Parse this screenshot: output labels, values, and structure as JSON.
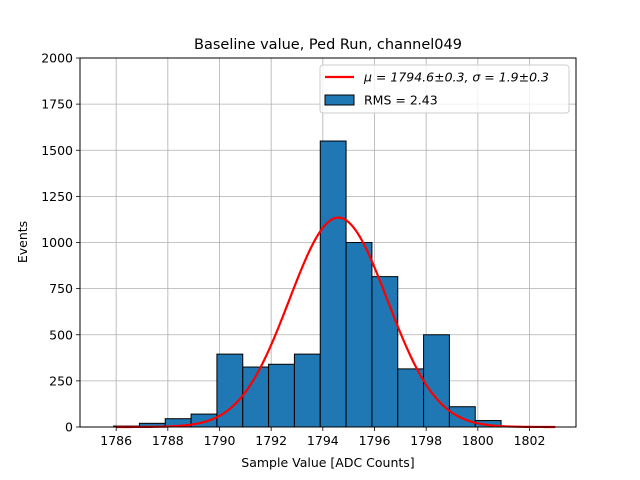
{
  "chart_data": {
    "type": "bar",
    "title": "Baseline value, Ped Run, channel049",
    "xlabel": "Sample Value [ADC Counts]",
    "ylabel": "Events",
    "xlim": [
      1784.6,
      1803.8
    ],
    "ylim": [
      0,
      2000
    ],
    "xticks": [
      1786,
      1788,
      1790,
      1792,
      1794,
      1796,
      1798,
      1800,
      1802
    ],
    "yticks": [
      0,
      250,
      500,
      750,
      1000,
      1250,
      1500,
      1750,
      2000
    ],
    "grid": true,
    "legend_position": "top-right",
    "bin_edges": [
      1785.9,
      1786.9,
      1787.9,
      1788.9,
      1789.9,
      1790.9,
      1791.9,
      1792.9,
      1793.9,
      1794.9,
      1795.9,
      1796.9,
      1797.9,
      1798.9,
      1799.9,
      1800.9
    ],
    "values": [
      5,
      20,
      45,
      70,
      395,
      325,
      340,
      395,
      1550,
      1000,
      815,
      315,
      500,
      110,
      35
    ],
    "bar_color": "#1f77b4",
    "fit": {
      "mu": 1794.6,
      "sigma": 1.9,
      "amplitude": 1135,
      "range": [
        1786,
        1803
      ],
      "color": "#ff0000"
    },
    "legend": {
      "fit_label": "μ = 1794.6±0.3, σ = 1.9±0.3",
      "hist_label": "RMS = 2.43"
    }
  }
}
